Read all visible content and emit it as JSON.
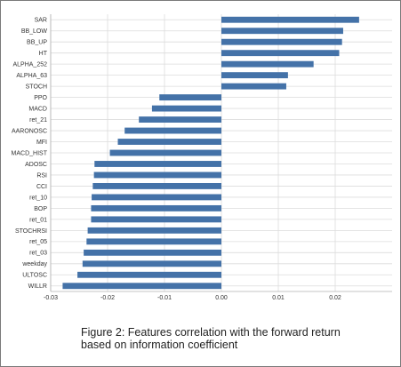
{
  "caption": {
    "line1": "Figure 2: Features correlation with the forward return",
    "line2": "based on information coefficient"
  },
  "colors": {
    "bar": "#4472a8",
    "grid": "#dcdcdc",
    "axis": "#b0b0b0"
  },
  "chart_data": {
    "type": "bar",
    "orientation": "horizontal",
    "title": "",
    "xlabel": "",
    "ylabel": "",
    "categories": [
      "SAR",
      "BB_LOW",
      "BB_UP",
      "HT",
      "ALPHA_252",
      "ALPHA_63",
      "STOCH",
      "PPO",
      "MACD",
      "ret_21",
      "AARONOSC",
      "MFI",
      "MACD_HIST",
      "ADOSC",
      "RSI",
      "CCI",
      "ret_10",
      "BOP",
      "ret_01",
      "STOCHRSI",
      "ret_05",
      "ret_03",
      "weekday",
      "ULTOSC",
      "WILLR"
    ],
    "values": [
      0.0242,
      0.0214,
      0.0212,
      0.0207,
      0.0162,
      0.0117,
      0.0114,
      -0.0109,
      -0.0122,
      -0.0145,
      -0.017,
      -0.0182,
      -0.0196,
      -0.0223,
      -0.0224,
      -0.0226,
      -0.0228,
      -0.0229,
      -0.0229,
      -0.0235,
      -0.0237,
      -0.0242,
      -0.0244,
      -0.0253,
      -0.0279
    ],
    "xlim": [
      -0.03,
      0.03
    ],
    "xticks": [
      -0.03,
      -0.02,
      -0.01,
      0.0,
      0.01,
      0.02
    ],
    "xtick_labels": [
      "-0.03",
      "-0.02",
      "-0.01",
      "0.00",
      "0.01",
      "0.02"
    ],
    "grid": true,
    "legend": "none"
  }
}
